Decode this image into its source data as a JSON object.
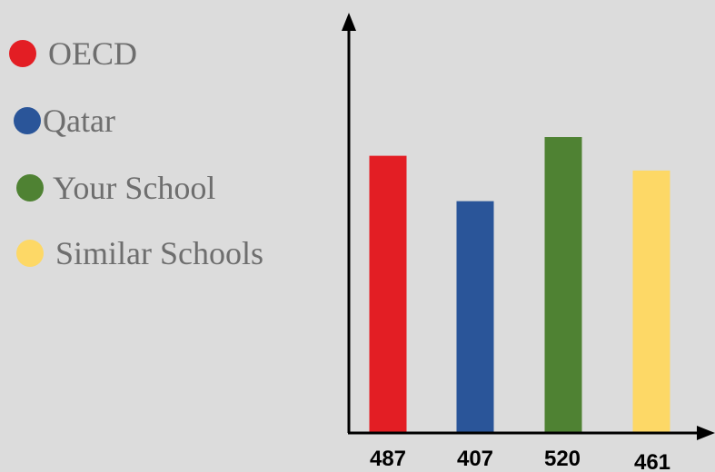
{
  "chart_data": {
    "type": "bar",
    "categories": [
      "OECD",
      "Qatar",
      "Your School",
      "Similar Schools"
    ],
    "values": [
      487,
      407,
      520,
      461
    ],
    "colors": [
      "#e31e24",
      "#2a5599",
      "#4f8233",
      "#fdd866"
    ],
    "ylim": [
      0,
      560
    ],
    "grid": false,
    "legend_position": "top-left"
  },
  "legend": {
    "items": [
      {
        "label": "OECD",
        "color": "#e31e24"
      },
      {
        "label": "Qatar",
        "color": "#2a5599"
      },
      {
        "label": "Your School",
        "color": "#4f8233"
      },
      {
        "label": "Similar Schools",
        "color": "#fdd866"
      }
    ]
  },
  "value_labels": [
    "487",
    "407",
    "520",
    "461"
  ]
}
